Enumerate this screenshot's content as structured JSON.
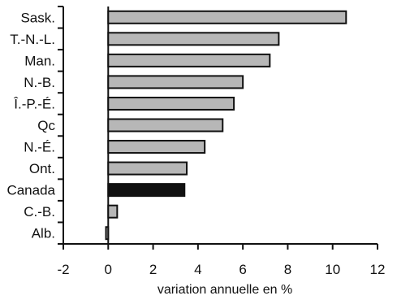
{
  "chart_data": {
    "type": "bar",
    "orientation": "horizontal",
    "categories": [
      "Sask.",
      "T.-N.-L.",
      "Man.",
      "N.-B.",
      "Î.-P.-É.",
      "Qc",
      "N.-É.",
      "Ont.",
      "Canada",
      "C.-B.",
      "Alb."
    ],
    "values": [
      10.6,
      7.6,
      7.2,
      6.0,
      5.6,
      5.1,
      4.3,
      3.5,
      3.4,
      0.4,
      -0.1
    ],
    "highlight": "Canada",
    "xlabel": "variation annuelle en %",
    "ylabel": "",
    "xlim": [
      -2,
      12
    ],
    "x_ticks": [
      -2,
      0,
      2,
      4,
      6,
      8,
      10,
      12
    ],
    "grid": false,
    "colors": {
      "default_bar": "#b7b7b7",
      "highlight_bar": "#111111",
      "axis": "#111111",
      "background": "#ffffff"
    }
  }
}
